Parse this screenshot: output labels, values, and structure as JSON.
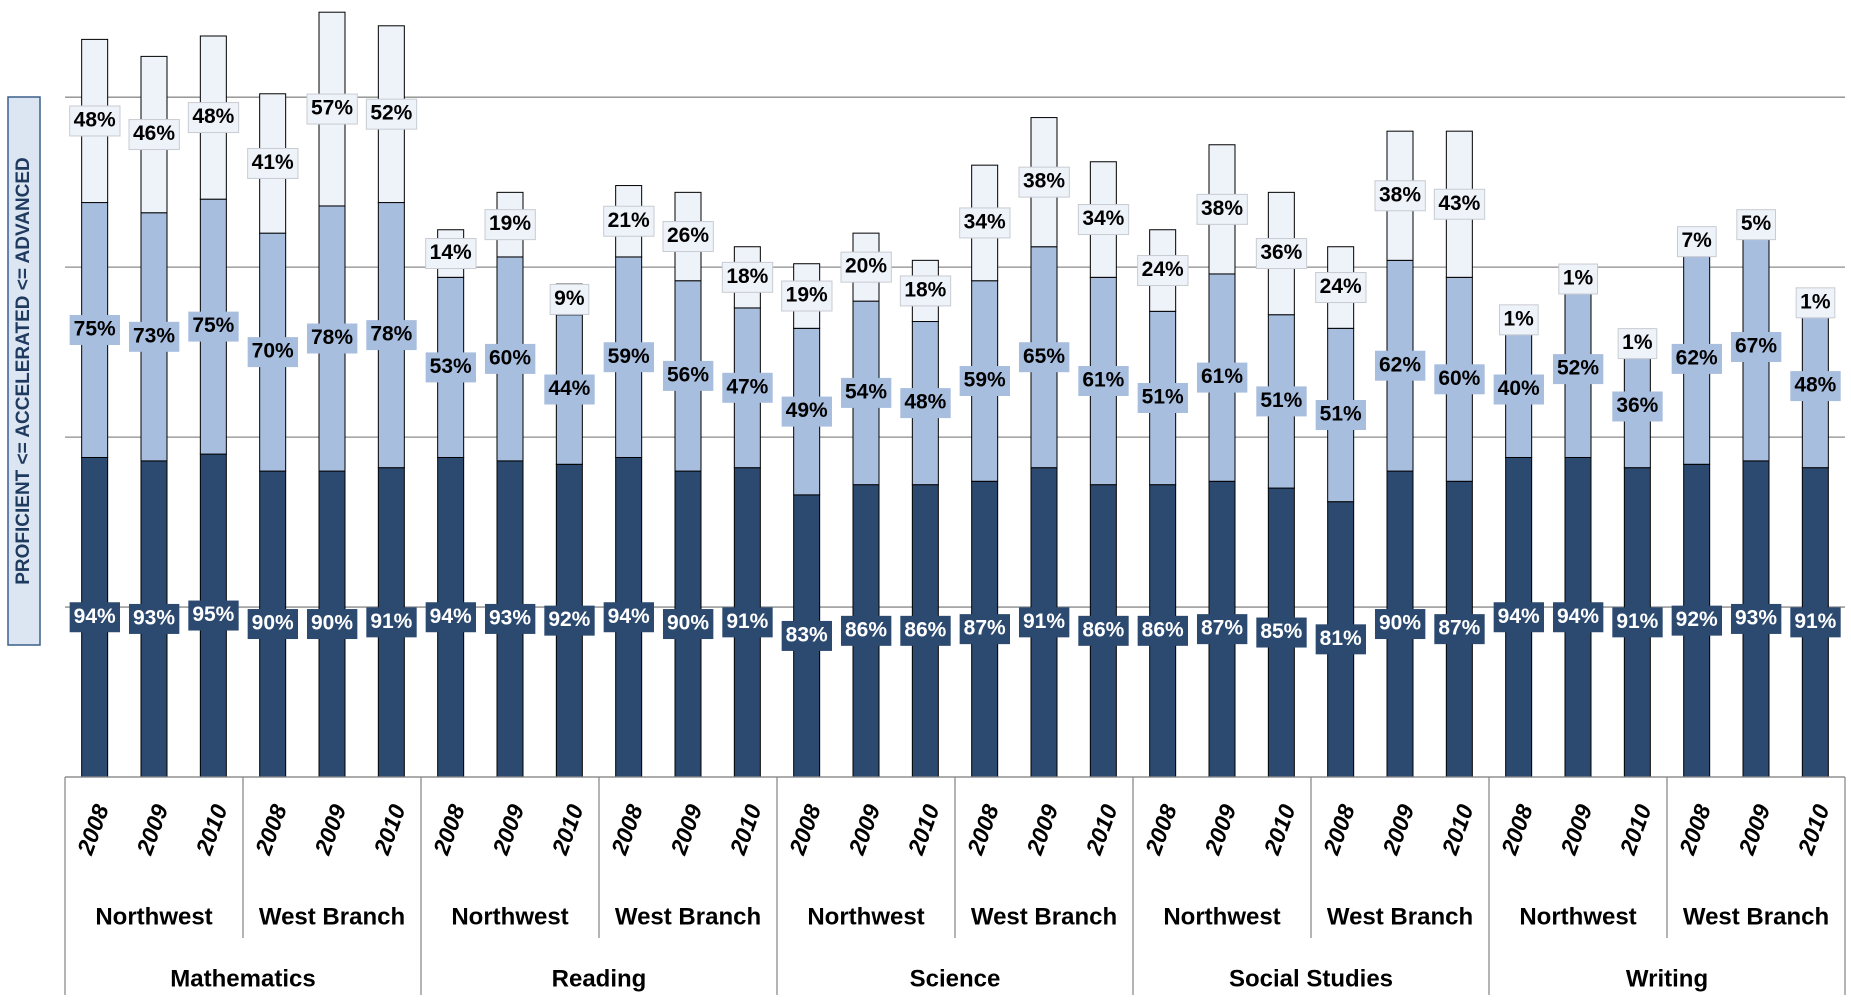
{
  "chart_data": {
    "type": "stacked_bar",
    "y_label": "PROFICIENT <= ACCELERATED <= ADVANCED",
    "categories": [
      "2008",
      "2009",
      "2010",
      "2008",
      "2009",
      "2010",
      "2008",
      "2009",
      "2010",
      "2008",
      "2009",
      "2010",
      "2008",
      "2009",
      "2010",
      "2008",
      "2009",
      "2010",
      "2008",
      "2009",
      "2010",
      "2008",
      "2009",
      "2010",
      "2008",
      "2009",
      "2010",
      "2008",
      "2009",
      "2010"
    ],
    "school_labels": [
      "Northwest",
      "West Branch",
      "Northwest",
      "West Branch",
      "Northwest",
      "West Branch",
      "Northwest",
      "West Branch",
      "Northwest",
      "West Branch"
    ],
    "subject_labels": [
      "Mathematics",
      "Reading",
      "Science",
      "Social Studies",
      "Writing"
    ],
    "series": [
      {
        "color": "#2c4a70",
        "values": [
          94,
          93,
          95,
          90,
          90,
          91,
          94,
          93,
          92,
          94,
          90,
          91,
          83,
          86,
          86,
          87,
          91,
          86,
          86,
          87,
          85,
          81,
          90,
          87,
          94,
          94,
          91,
          92,
          93,
          91
        ],
        "value_labels": [
          "94%",
          "93%",
          "95%",
          "90%",
          "90%",
          "91%",
          "94%",
          "93%",
          "92%",
          "94%",
          "90%",
          "91%",
          "83%",
          "86%",
          "86%",
          "87%",
          "91%",
          "86%",
          "86%",
          "87%",
          "85%",
          "81%",
          "90%",
          "87%",
          "94%",
          "94%",
          "91%",
          "92%",
          "93%",
          "91%"
        ]
      },
      {
        "color": "#a8bedf",
        "values": [
          75,
          73,
          75,
          70,
          78,
          78,
          53,
          60,
          44,
          59,
          56,
          47,
          49,
          54,
          48,
          59,
          65,
          61,
          51,
          61,
          51,
          51,
          62,
          60,
          40,
          52,
          36,
          62,
          67,
          48
        ],
        "value_labels": [
          "75%",
          "73%",
          "75%",
          "70%",
          "78%",
          "78%",
          "53%",
          "60%",
          "44%",
          "59%",
          "56%",
          "47%",
          "49%",
          "54%",
          "48%",
          "59%",
          "65%",
          "61%",
          "51%",
          "61%",
          "51%",
          "51%",
          "62%",
          "60%",
          "40%",
          "52%",
          "36%",
          "62%",
          "67%",
          "48%"
        ]
      },
      {
        "color": "#eef2f9",
        "values": [
          48,
          46,
          48,
          41,
          57,
          52,
          14,
          19,
          9,
          21,
          26,
          18,
          19,
          20,
          18,
          34,
          38,
          34,
          24,
          38,
          36,
          24,
          38,
          43,
          1,
          1,
          1,
          7,
          5,
          1
        ],
        "value_labels": [
          "48%",
          "46%",
          "48%",
          "41%",
          "57%",
          "52%",
          "14%",
          "19%",
          "9%",
          "21%",
          "26%",
          "18%",
          "19%",
          "20%",
          "18%",
          "34%",
          "38%",
          "34%",
          "24%",
          "38%",
          "36%",
          "24%",
          "38%",
          "43%",
          "1%",
          "1%",
          "1%",
          "7%",
          "5%",
          "1%"
        ]
      }
    ],
    "ylim": [
      0,
      228
    ],
    "yticks": [
      0,
      50,
      100,
      150,
      200
    ],
    "grid": true
  }
}
